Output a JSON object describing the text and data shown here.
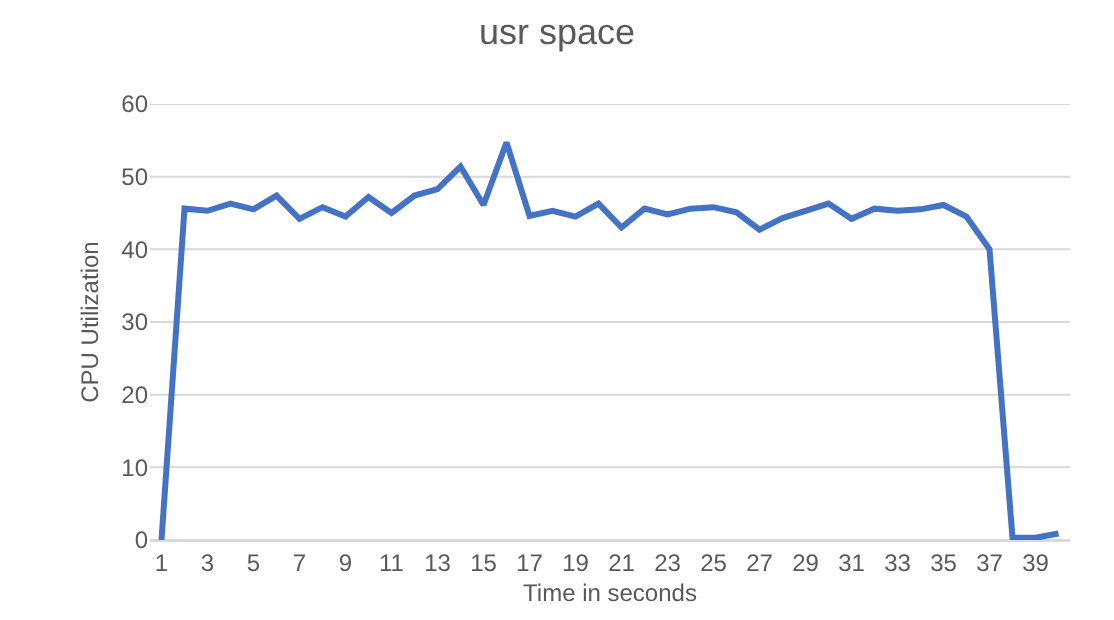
{
  "chart_data": {
    "type": "line",
    "title": "usr space",
    "xlabel": "Time in seconds",
    "ylabel": "CPU Utilization",
    "x": [
      1,
      2,
      3,
      4,
      5,
      6,
      7,
      8,
      9,
      10,
      11,
      12,
      13,
      14,
      15,
      16,
      17,
      18,
      19,
      20,
      21,
      22,
      23,
      24,
      25,
      26,
      27,
      28,
      29,
      30,
      31,
      32,
      33,
      34,
      35,
      36,
      37,
      38,
      39,
      40
    ],
    "series": [
      {
        "color": "#4472c4",
        "values": [
          0,
          45.6,
          45.3,
          46.3,
          45.5,
          47.4,
          44.2,
          45.8,
          44.5,
          47.2,
          45.0,
          47.4,
          48.3,
          51.4,
          46.1,
          54.7,
          44.6,
          45.3,
          44.5,
          46.3,
          43.0,
          45.6,
          44.8,
          45.6,
          45.8,
          45.1,
          42.7,
          44.3,
          45.3,
          46.3,
          44.2,
          45.6,
          45.3,
          45.5,
          46.1,
          44.5,
          40.0,
          0.3,
          0.3,
          0.9
        ]
      }
    ],
    "xlim": [
      0.5,
      40.5
    ],
    "xticks": [
      1,
      3,
      5,
      7,
      9,
      11,
      13,
      15,
      17,
      19,
      21,
      23,
      25,
      27,
      29,
      31,
      33,
      35,
      37,
      39
    ],
    "ylim": [
      0,
      60
    ],
    "yticks": [
      0,
      10,
      20,
      30,
      40,
      50,
      60
    ],
    "grid": "y",
    "marker": "none",
    "line_style": "solid"
  }
}
